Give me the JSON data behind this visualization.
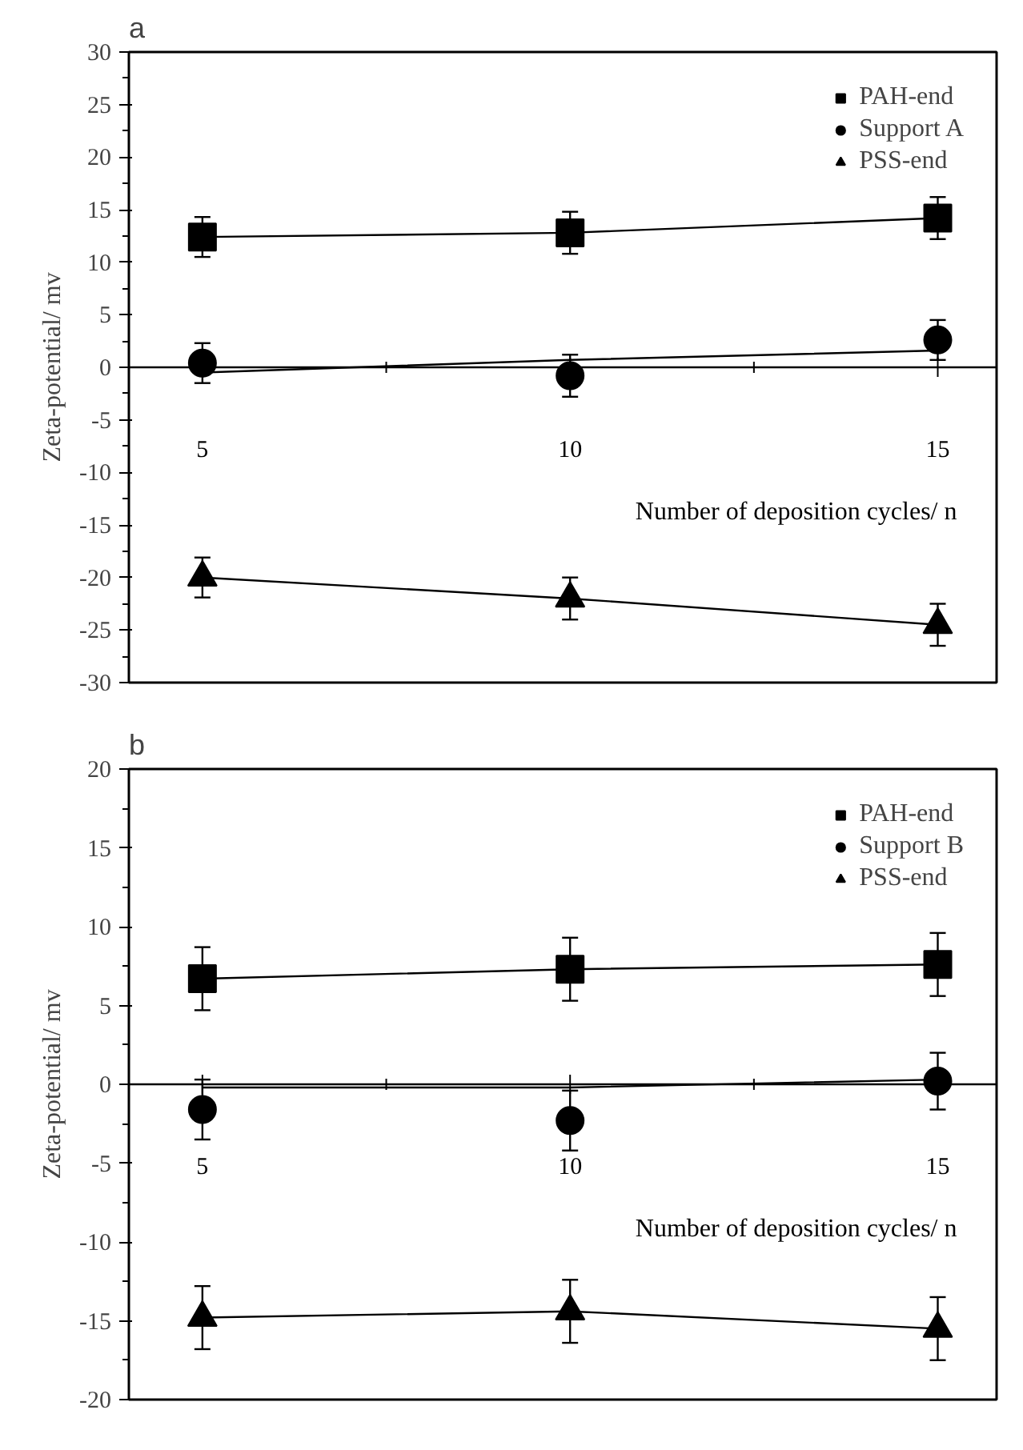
{
  "chart_data": [
    {
      "type": "line",
      "title": "a",
      "xlabel": "Number of deposition cycles/ n",
      "ylabel": "Zeta-potential/ mv",
      "xlim": [
        4,
        15.8
      ],
      "xticks": [
        5,
        10,
        15
      ],
      "ylim": [
        -30,
        30
      ],
      "yticks": [
        -30,
        -25,
        -20,
        -15,
        -10,
        -5,
        0,
        5,
        10,
        15,
        20,
        25,
        30
      ],
      "grid": false,
      "legend": "top right",
      "line_style": "solid",
      "ref_lines": [
        {
          "axis": "y",
          "value": 0,
          "color": "#000000"
        }
      ],
      "series": [
        {
          "name": "PAH-end",
          "marker": "square",
          "color": "#000000",
          "x": [
            5,
            10,
            15
          ],
          "values": [
            12.4,
            12.8,
            14.2
          ],
          "errors": [
            1.9,
            2,
            2
          ]
        },
        {
          "name": "Support A",
          "type": "scatter",
          "marker": "circle",
          "color": "#000000",
          "x": [
            5,
            10,
            15
          ],
          "values": [
            0.4,
            -0.8,
            2.6
          ],
          "errors": [
            1.9,
            2,
            1.9
          ]
        },
        {
          "name": "PSS-end",
          "marker": "triangle",
          "color": "#000000",
          "x": [
            5,
            10,
            15
          ],
          "values": [
            -20,
            -22,
            -24.5
          ],
          "errors": [
            1.9,
            2,
            2
          ]
        },
        {
          "type": "line",
          "marker": "none",
          "color": "#000000",
          "x": [
            5,
            10,
            15
          ],
          "values": [
            -0.5,
            0.7,
            1.6
          ]
        }
      ]
    },
    {
      "type": "line",
      "title": "b",
      "xlabel": "Number of deposition cycles/ n",
      "ylabel": "Zeta-potential/ mv",
      "xlim": [
        4,
        15.8
      ],
      "xticks": [
        5,
        10,
        15
      ],
      "ylim": [
        -20,
        20
      ],
      "yticks": [
        -20,
        -15,
        -10,
        -5,
        0,
        5,
        10,
        15,
        20
      ],
      "grid": false,
      "legend": "top right",
      "line_style": "solid",
      "ref_lines": [
        {
          "axis": "y",
          "value": 0,
          "color": "#000000"
        }
      ],
      "series": [
        {
          "name": "PAH-end",
          "marker": "square",
          "color": "#000000",
          "x": [
            5,
            10,
            15
          ],
          "values": [
            6.7,
            7.3,
            7.6
          ],
          "errors": [
            2,
            2,
            2
          ]
        },
        {
          "name": "Support B",
          "type": "scatter",
          "marker": "circle",
          "color": "#000000",
          "x": [
            5,
            10,
            15
          ],
          "values": [
            -1.6,
            -2.3,
            0.2
          ],
          "errors": [
            1.9,
            1.9,
            1.8
          ]
        },
        {
          "name": "PSS-end",
          "marker": "triangle",
          "color": "#000000",
          "x": [
            5,
            10,
            15
          ],
          "values": [
            -14.8,
            -14.4,
            -15.5
          ],
          "errors": [
            2,
            2,
            2
          ]
        },
        {
          "type": "line",
          "marker": "none",
          "color": "#000000",
          "x": [
            5,
            10,
            15
          ],
          "values": [
            -0.2,
            -0.2,
            0.3
          ]
        }
      ]
    }
  ]
}
